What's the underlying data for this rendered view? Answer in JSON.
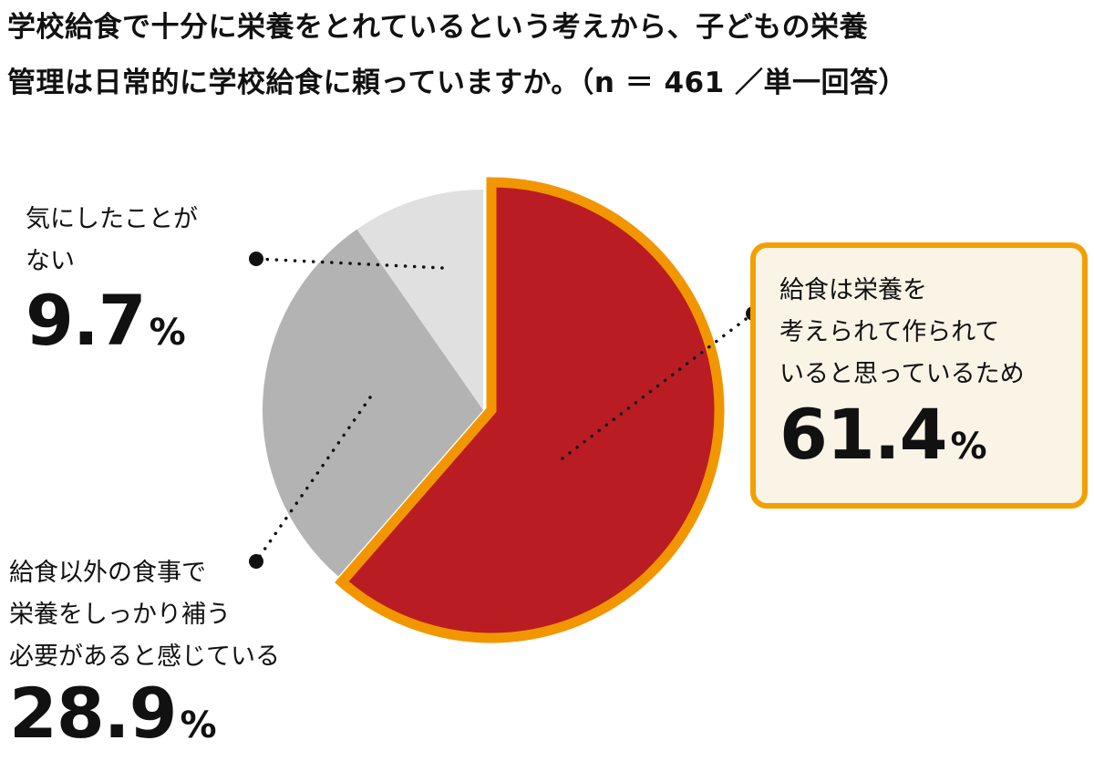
{
  "title": {
    "line1": "学校給食で十分に栄養をとれているという考えから、子どもの栄養",
    "line2": "管理は日常的に学校給食に頼っていますか。（n ＝ 461 ／単一回答）"
  },
  "labels": {
    "nutrition": {
      "lines": [
        "給食は栄養を",
        "考えられて作られて",
        "いると思っているため"
      ],
      "num": "61.4",
      "unit": "%"
    },
    "supplement": {
      "lines": [
        "給食以外の食事で",
        "栄養をしっかり補う",
        "必要があると感じている"
      ],
      "num": "28.9",
      "unit": "%"
    },
    "never": {
      "lines": [
        "気にしたことが",
        "ない"
      ],
      "num": "9.7",
      "unit": "%"
    }
  },
  "colors": {
    "highlight_fill": "#b91d23",
    "highlight_outline": "#f29600",
    "mid_gray": "#b3b3b3",
    "light_gray": "#e0e0e0",
    "callout_bg": "#f9f4e6",
    "leader": "#111111"
  },
  "chart_data": {
    "type": "pie",
    "title": "学校給食で十分に栄養をとれているという考えから、子どもの栄養管理は日常的に学校給食に頼っていますか。（n ＝ 461 ／単一回答）",
    "slices": [
      {
        "label": "給食は栄養を考えられて作られていると思っているため",
        "value": 61.4,
        "highlighted": true
      },
      {
        "label": "給食以外の食事で栄養をしっかり補う必要があると感じている",
        "value": 28.9
      },
      {
        "label": "気にしたことがない",
        "value": 9.7
      }
    ],
    "unit": "%"
  }
}
